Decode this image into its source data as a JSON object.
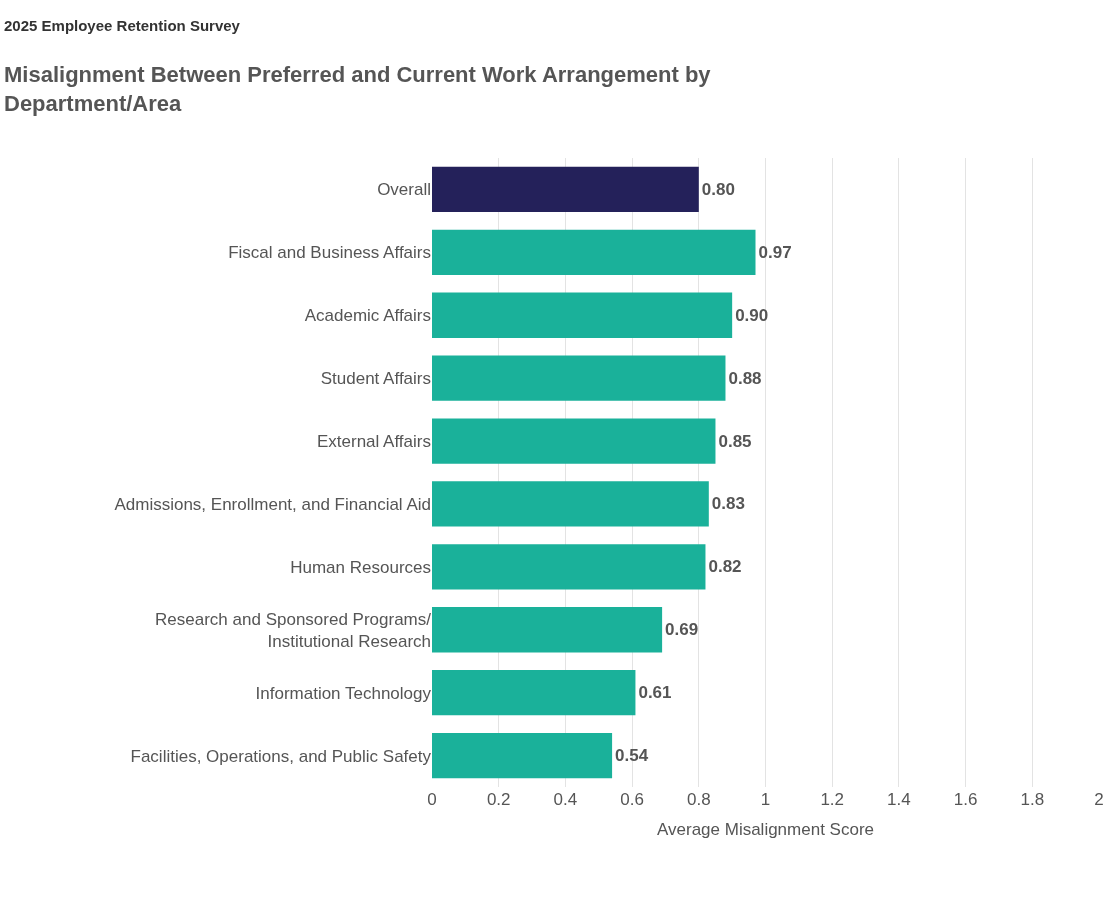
{
  "chart_data": {
    "type": "bar",
    "orientation": "horizontal",
    "subtitle": "2025 Employee Retention Survey",
    "title": "Misalignment Between Preferred and Current Work Arrangement by Department/Area",
    "xlabel": "Average Misalignment Score",
    "categories": [
      "Overall",
      "Fiscal and Business Affairs",
      "Academic Affairs",
      "Student Affairs",
      "External Affairs",
      "Admissions, Enrollment, and Financial Aid",
      "Human Resources",
      "Research and Sponsored Programs/ Institutional Research",
      "Information Technology",
      "Facilities, Operations, and Public Safety"
    ],
    "values": [
      0.8,
      0.97,
      0.9,
      0.88,
      0.85,
      0.83,
      0.82,
      0.69,
      0.61,
      0.54
    ],
    "value_labels": [
      "0.80",
      "0.97",
      "0.90",
      "0.88",
      "0.85",
      "0.83",
      "0.82",
      "0.69",
      "0.61",
      "0.54"
    ],
    "colors": [
      "#24215a",
      "#1ab19a",
      "#1ab19a",
      "#1ab19a",
      "#1ab19a",
      "#1ab19a",
      "#1ab19a",
      "#1ab19a",
      "#1ab19a",
      "#1ab19a"
    ],
    "xlim": [
      0,
      2
    ],
    "xticks": [
      0,
      0.2,
      0.4,
      0.6,
      0.8,
      1,
      1.2,
      1.4,
      1.6,
      1.8,
      2
    ],
    "grid": "x"
  }
}
